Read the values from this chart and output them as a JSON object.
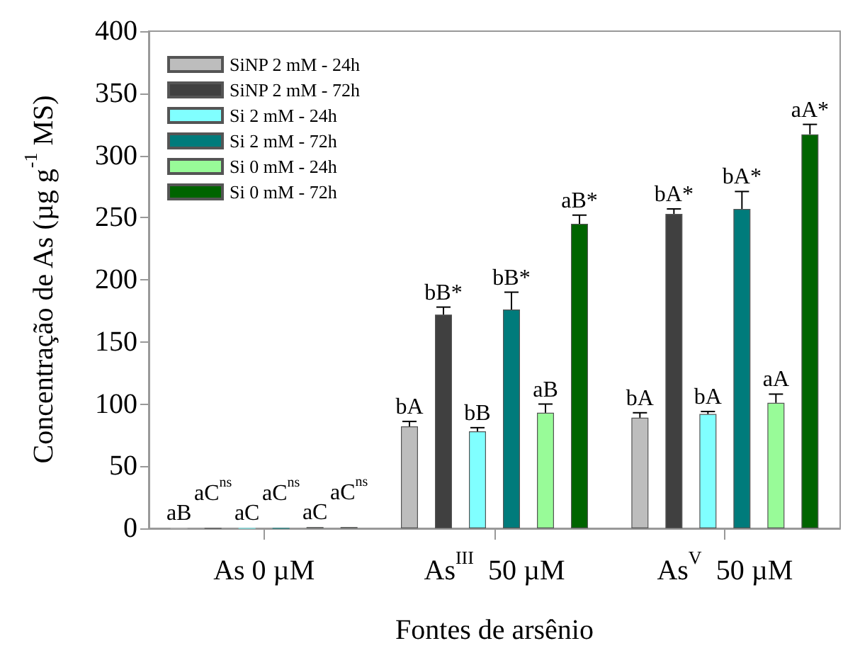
{
  "chart_data": {
    "type": "bar",
    "xlabel": "Fontes de arsênio",
    "ylabel": "Concentração de As (µg g$^{-1}$ MS)",
    "categories": [
      "As 0 µM",
      "As$^{III}$  50 µM",
      "As$^{V}$  50 µM"
    ],
    "ylim": [
      0,
      400
    ],
    "yticks": [
      0,
      50,
      100,
      150,
      200,
      250,
      300,
      350,
      400
    ],
    "grid": false,
    "legend": "top left",
    "series": [
      {
        "name": "SiNP 2 mM - 24h",
        "color": "#bdbdbd",
        "values": [
          0,
          82,
          89
        ],
        "errors": [
          null,
          4,
          4
        ],
        "value_labels": [
          "aB",
          "bA",
          "bA"
        ]
      },
      {
        "name": "SiNP 2 mM - 72h",
        "color": "#404040",
        "values": [
          0,
          172,
          253
        ],
        "errors": [
          null,
          6,
          4
        ],
        "value_labels": [
          "aC$^{ns}$",
          "bB*",
          "bA*"
        ]
      },
      {
        "name": "Si 2 mM - 24h",
        "color": "#80ffff",
        "values": [
          0,
          78,
          92
        ],
        "errors": [
          null,
          3,
          2
        ],
        "value_labels": [
          "aC",
          "bB",
          "bA"
        ]
      },
      {
        "name": "Si 2 mM - 72h",
        "color": "#007b7b",
        "values": [
          0,
          176,
          257
        ],
        "errors": [
          null,
          14,
          14
        ],
        "value_labels": [
          "aC$^{ns}$",
          "bB*",
          "bA*"
        ]
      },
      {
        "name": "Si 0 mM - 24h",
        "color": "#98fb98",
        "values": [
          1,
          93,
          101
        ],
        "errors": [
          null,
          7,
          7
        ],
        "value_labels": [
          "aC",
          "aB",
          "aA"
        ]
      },
      {
        "name": "Si 0 mM - 72h",
        "color": "#006400",
        "values": [
          1,
          245,
          317
        ],
        "errors": [
          null,
          7,
          8
        ],
        "value_labels": [
          "aC$^{ns}$",
          "aB*",
          "aA*"
        ]
      }
    ]
  }
}
